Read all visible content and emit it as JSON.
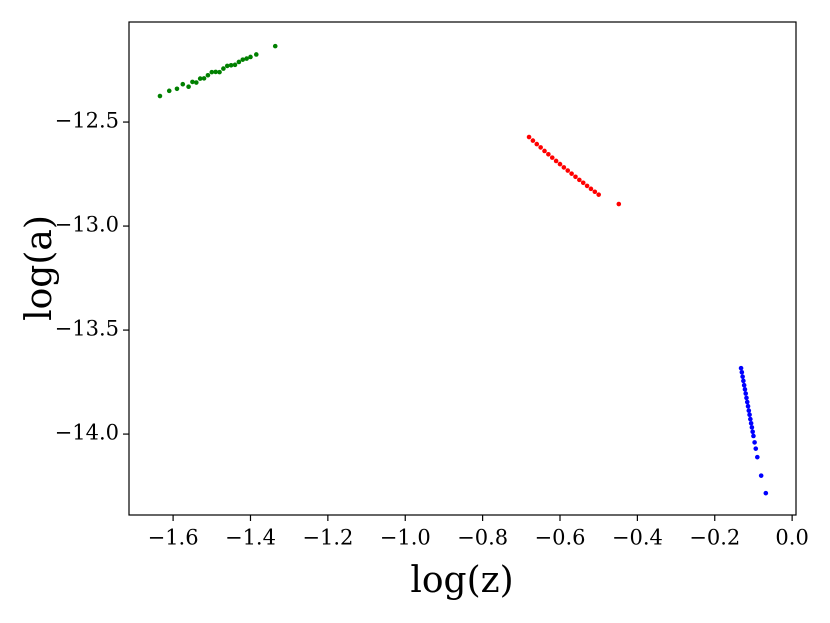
{
  "chart_data": {
    "type": "scatter",
    "x_label": "log(z)",
    "y_label": "log(a)",
    "xlim": [
      -1.714,
      0.01
    ],
    "ylim": [
      -14.389,
      -12.019
    ],
    "xticks": [
      {
        "value": -1.6,
        "label": "−1.6"
      },
      {
        "value": -1.4,
        "label": "−1.4"
      },
      {
        "value": -1.2,
        "label": "−1.2"
      },
      {
        "value": -1.0,
        "label": "−1.0"
      },
      {
        "value": -0.8,
        "label": "−0.8"
      },
      {
        "value": -0.6,
        "label": "−0.6"
      },
      {
        "value": -0.4,
        "label": "−0.4"
      },
      {
        "value": -0.2,
        "label": "−0.2"
      },
      {
        "value": 0,
        "label": "0.0"
      }
    ],
    "yticks": [
      {
        "value": -12.5,
        "label": "−12.5"
      },
      {
        "value": -13.0,
        "label": "−13.0"
      },
      {
        "value": -13.5,
        "label": "−13.5"
      },
      {
        "value": -14.0,
        "label": "−14.0"
      }
    ],
    "series": [
      {
        "color": "#008000",
        "x": [
          -1.634,
          -1.61,
          -1.59,
          -1.575,
          -1.56,
          -1.55,
          -1.54,
          -1.53,
          -1.52,
          -1.51,
          -1.5,
          -1.49,
          -1.48,
          -1.47,
          -1.46,
          -1.45,
          -1.44,
          -1.43,
          -1.42,
          -1.41,
          -1.4,
          -1.385,
          -1.336
        ],
        "values": [
          -12.375,
          -12.35,
          -12.34,
          -12.318,
          -12.33,
          -12.307,
          -12.31,
          -12.291,
          -12.29,
          -12.275,
          -12.26,
          -12.259,
          -12.26,
          -12.243,
          -12.23,
          -12.227,
          -12.225,
          -12.211,
          -12.2,
          -12.195,
          -12.187,
          -12.175,
          -12.135
        ]
      },
      {
        "color": "#ff0000",
        "x": [
          -0.68,
          -0.67,
          -0.66,
          -0.65,
          -0.64,
          -0.63,
          -0.62,
          -0.61,
          -0.6,
          -0.59,
          -0.58,
          -0.57,
          -0.56,
          -0.55,
          -0.54,
          -0.53,
          -0.52,
          -0.51,
          -0.5,
          -0.448
        ],
        "values": [
          -12.572,
          -12.589,
          -12.606,
          -12.622,
          -12.639,
          -12.655,
          -12.671,
          -12.687,
          -12.702,
          -12.718,
          -12.733,
          -12.748,
          -12.763,
          -12.778,
          -12.792,
          -12.807,
          -12.821,
          -12.835,
          -12.849,
          -12.894
        ]
      },
      {
        "color": "#0000ff",
        "x": [
          -0.132,
          -0.13,
          -0.128,
          -0.126,
          -0.124,
          -0.122,
          -0.12,
          -0.118,
          -0.116,
          -0.114,
          -0.112,
          -0.11,
          -0.108,
          -0.106,
          -0.104,
          -0.102,
          -0.1,
          -0.097,
          -0.094,
          -0.09,
          -0.08,
          -0.068
        ],
        "values": [
          -13.683,
          -13.703,
          -13.724,
          -13.744,
          -13.765,
          -13.785,
          -13.805,
          -13.826,
          -13.846,
          -13.866,
          -13.887,
          -13.907,
          -13.928,
          -13.948,
          -13.968,
          -13.989,
          -14.009,
          -14.04,
          -14.07,
          -14.111,
          -14.2,
          -14.284
        ]
      }
    ]
  }
}
